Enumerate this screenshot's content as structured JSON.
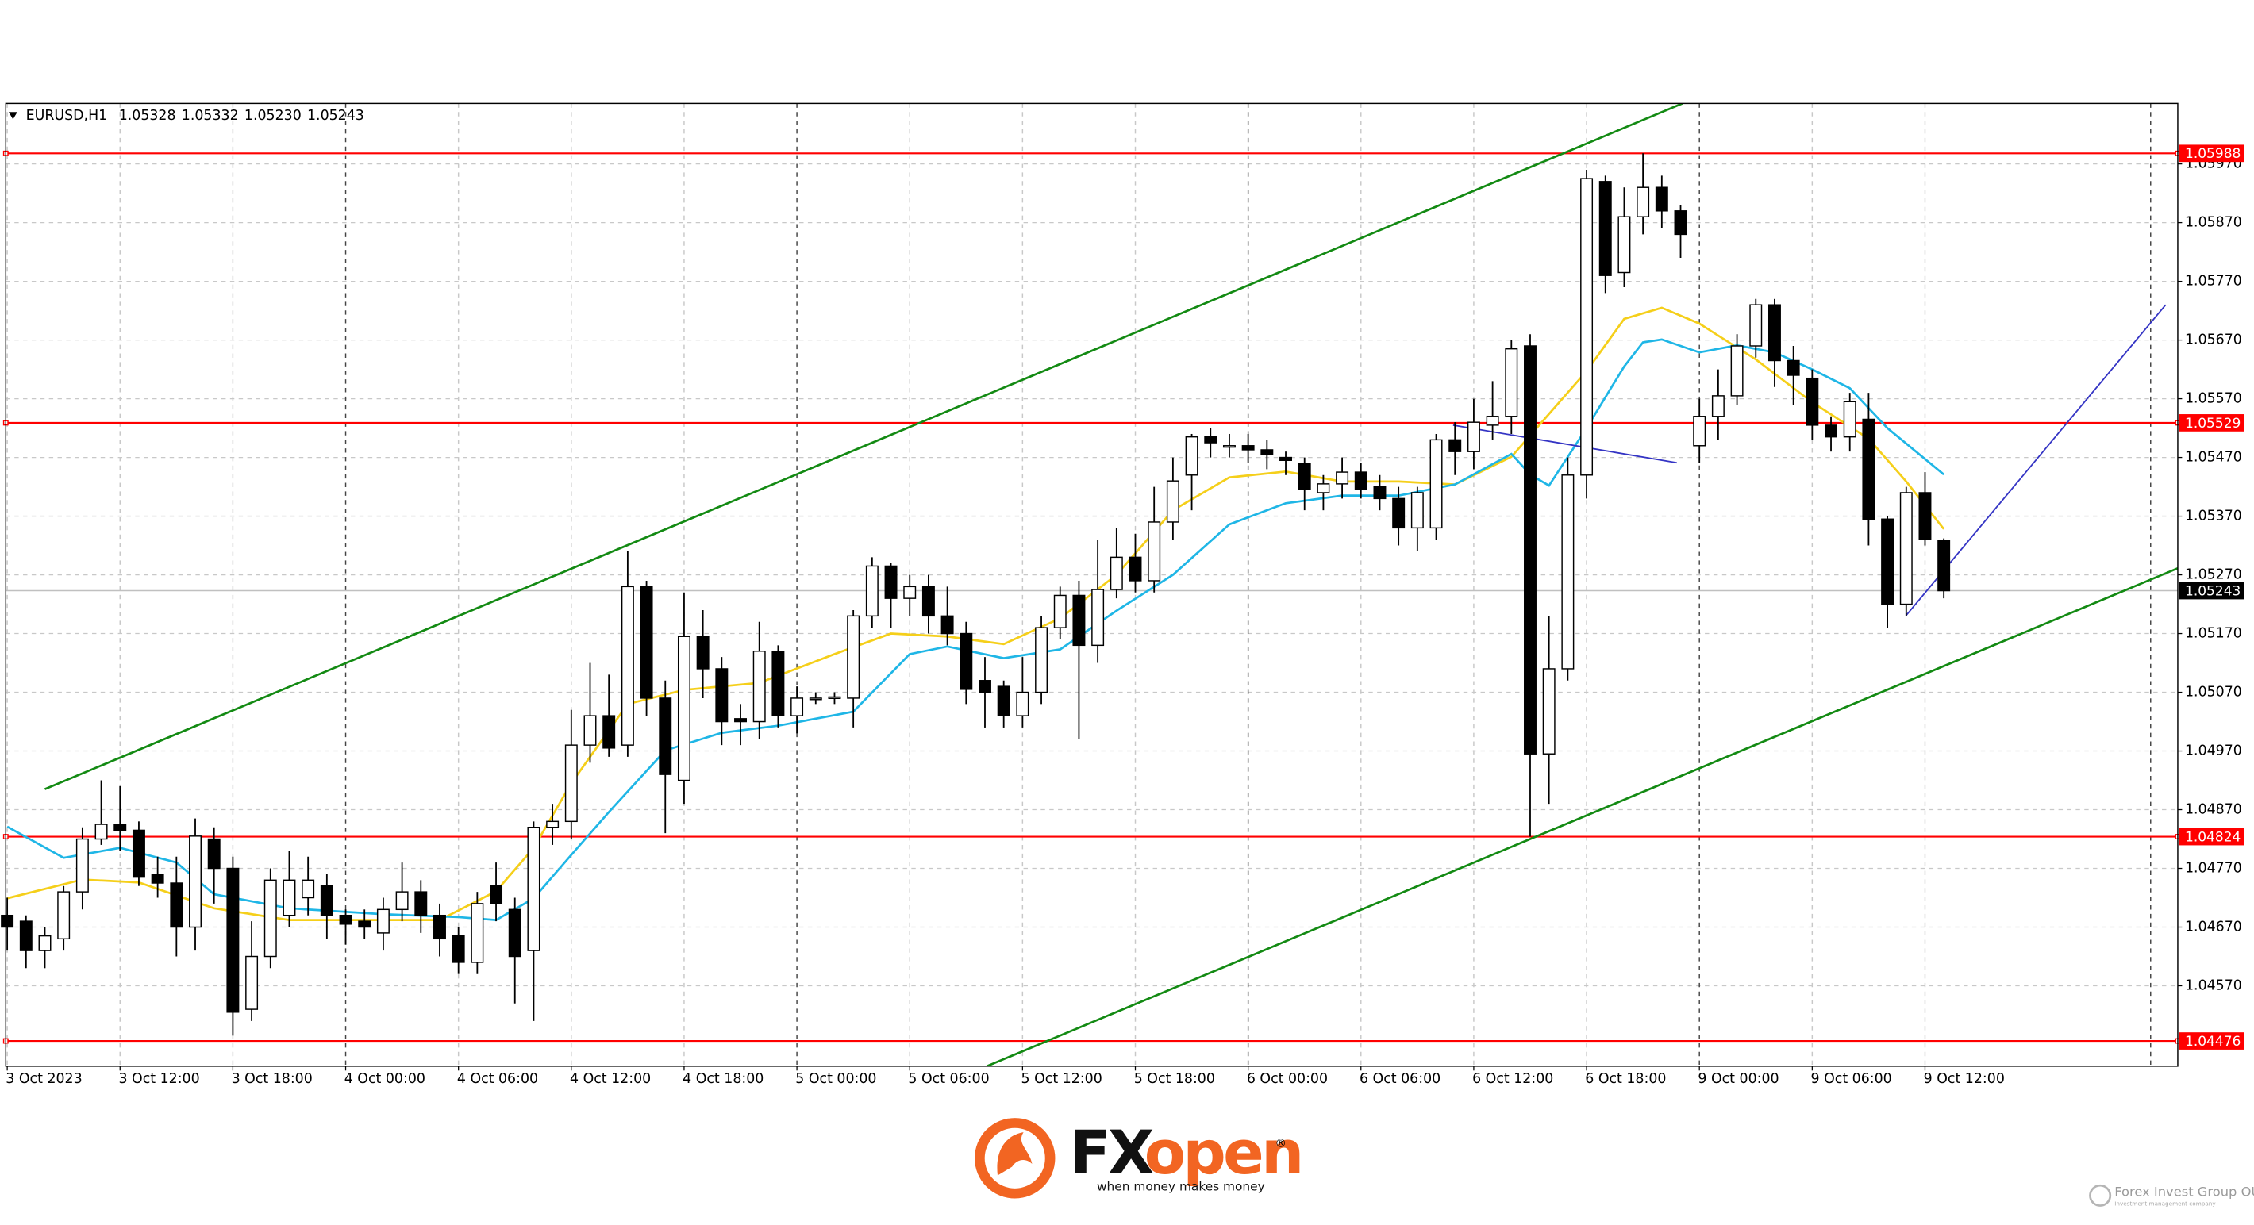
{
  "chart_data": {
    "type": "candlestick",
    "symbol": "EURUSD,H1",
    "quote": [
      1.05328,
      1.05332,
      {
        "value": 1.0523,
        "label": "1.05230"
      },
      1.05243
    ],
    "categories": [
      "3 Oct 2023",
      null,
      null,
      null,
      null,
      null,
      "3 Oct 12:00",
      null,
      null,
      null,
      null,
      null,
      "3 Oct 18:00",
      null,
      null,
      null,
      null,
      null,
      "4 Oct 00:00",
      null,
      null,
      null,
      null,
      null,
      "4 Oct 06:00",
      null,
      null,
      null,
      null,
      null,
      "4 Oct 12:00",
      null,
      null,
      null,
      null,
      null,
      "4 Oct 18:00",
      null,
      null,
      null,
      null,
      null,
      "5 Oct 00:00",
      null,
      null,
      null,
      null,
      null,
      "5 Oct 06:00",
      null,
      null,
      null,
      null,
      null,
      "5 Oct 12:00",
      null,
      null,
      null,
      null,
      null,
      "5 Oct 18:00",
      null,
      null,
      null,
      null,
      null,
      "6 Oct 00:00",
      null,
      null,
      null,
      null,
      null,
      "6 Oct 06:00",
      null,
      null,
      null,
      null,
      null,
      "6 Oct 12:00",
      null,
      null,
      null,
      null,
      null,
      "6 Oct 18:00",
      null,
      null,
      null,
      null,
      null,
      "9 Oct 00:00",
      null,
      null,
      null,
      null,
      null,
      "9 Oct 06:00",
      null,
      null,
      null,
      null,
      null,
      "9 Oct 12:00",
      null
    ],
    "open": [
      1.0469,
      1.0468,
      1.0463,
      1.0465,
      1.0473,
      1.0482,
      1.04845,
      1.04835,
      1.0476,
      1.04745,
      1.0467,
      1.0482,
      1.0477,
      1.0453,
      1.0462,
      1.0469,
      1.0472,
      1.0474,
      1.0469,
      1.0468,
      1.0466,
      1.047,
      1.0473,
      1.0469,
      1.04655,
      1.0461,
      1.0474,
      1.047,
      1.0463,
      1.0484,
      1.0485,
      1.0498,
      1.0503,
      1.0498,
      1.0525,
      1.0506,
      1.0492,
      1.05165,
      1.0511,
      1.05025,
      1.0502,
      1.0514,
      1.0503,
      1.0506,
      1.0506,
      1.0506,
      1.052,
      1.05285,
      1.0523,
      1.0525,
      1.052,
      1.0517,
      1.0509,
      1.0508,
      1.0503,
      1.0507,
      1.0518,
      1.05235,
      1.0515,
      1.05245,
      1.053,
      1.0526,
      1.0536,
      1.0544,
      1.05505,
      1.0549,
      1.0549,
      1.05483,
      1.0547,
      1.0546,
      1.0541,
      1.05425,
      1.05445,
      1.0542,
      1.054,
      1.0535,
      1.0535,
      1.055,
      1.0548,
      1.05525,
      1.0554,
      1.0566,
      1.04965,
      1.0511,
      1.0544,
      1.0594,
      1.05785,
      1.0588,
      1.0593,
      1.0589,
      1.0549,
      1.0554,
      1.05575,
      1.0566,
      1.0573,
      1.05635,
      1.05605,
      1.05525,
      1.05505,
      1.05535,
      1.05365,
      1.0522,
      1.0541,
      1.05328
    ],
    "high": [
      1.0472,
      1.0469,
      1.0467,
      1.0474,
      1.0484,
      1.0492,
      1.0491,
      1.0485,
      1.0479,
      1.0479,
      1.04855,
      1.0484,
      1.0479,
      1.0468,
      1.0477,
      1.048,
      1.0479,
      1.0476,
      1.047,
      1.047,
      1.0472,
      1.0478,
      1.0475,
      1.0471,
      1.0467,
      1.0473,
      1.0478,
      1.0472,
      1.0485,
      1.0488,
      1.0504,
      1.0512,
      1.051,
      1.0531,
      1.0526,
      1.0509,
      1.0524,
      1.0521,
      1.0513,
      1.0505,
      1.0519,
      1.0515,
      1.0508,
      1.0507,
      1.0507,
      1.0521,
      1.053,
      1.0529,
      1.0527,
      1.0527,
      1.0525,
      1.0519,
      1.0513,
      1.0509,
      1.0513,
      1.052,
      1.0525,
      1.0526,
      1.0533,
      1.0535,
      1.0534,
      1.0542,
      1.0547,
      1.0551,
      1.0552,
      1.0551,
      1.0551,
      1.055,
      1.0548,
      1.0547,
      1.0544,
      1.0547,
      1.0546,
      1.0544,
      1.0542,
      1.0542,
      1.0551,
      1.0553,
      1.0557,
      1.056,
      1.0567,
      1.0568,
      1.052,
      1.0547,
      1.0596,
      1.0595,
      1.0593,
      1.05988,
      1.0595,
      1.059,
      1.0557,
      1.0562,
      1.0568,
      1.0574,
      1.0574,
      1.0566,
      1.0562,
      1.0554,
      1.0558,
      1.0558,
      1.0537,
      1.0542,
      1.05445,
      1.05332
    ],
    "low": [
      1.0463,
      1.046,
      1.046,
      1.0463,
      1.047,
      1.0481,
      1.048,
      1.0474,
      1.0472,
      1.0462,
      1.0463,
      1.0471,
      1.04485,
      1.0451,
      1.046,
      1.0467,
      1.0469,
      1.0465,
      1.0464,
      1.0465,
      1.0463,
      1.0468,
      1.0466,
      1.0462,
      1.0459,
      1.0459,
      1.0468,
      1.0454,
      1.0451,
      1.0481,
      1.0482,
      1.0495,
      1.0496,
      1.0496,
      1.0503,
      1.0483,
      1.0488,
      1.0506,
      1.0498,
      1.0498,
      1.0499,
      1.0501,
      1.05,
      1.0505,
      1.0505,
      1.0501,
      1.0518,
      1.0518,
      1.052,
      1.0517,
      1.0515,
      1.0505,
      1.0501,
      1.0501,
      1.0501,
      1.0505,
      1.0516,
      1.0499,
      1.0512,
      1.0523,
      1.0524,
      1.0524,
      1.0533,
      1.0538,
      1.0547,
      1.0547,
      1.0546,
      1.0545,
      1.0544,
      1.0538,
      1.0538,
      1.054,
      1.054,
      1.0538,
      1.0532,
      1.0531,
      1.0533,
      1.0544,
      1.0545,
      1.055,
      1.0551,
      1.04824,
      1.0488,
      1.0509,
      1.054,
      1.0575,
      1.0576,
      1.0585,
      1.0586,
      1.0581,
      1.0546,
      1.055,
      1.0556,
      1.0564,
      1.0559,
      1.0556,
      1.055,
      1.0548,
      1.0548,
      1.0532,
      1.0518,
      1.052,
      1.0532,
      1.0523
    ],
    "close": [
      1.0467,
      1.0463,
      1.04655,
      1.0473,
      1.0482,
      1.04845,
      1.04835,
      1.04755,
      1.04745,
      1.0467,
      1.04825,
      1.0477,
      1.04525,
      1.0462,
      1.0475,
      1.0475,
      1.0475,
      1.0469,
      1.04675,
      1.0467,
      1.047,
      1.0473,
      1.0469,
      1.0465,
      1.0461,
      1.0471,
      1.0471,
      1.0462,
      1.0484,
      1.0485,
      1.0498,
      1.0503,
      1.04975,
      1.0525,
      1.0506,
      1.0493,
      1.05165,
      1.0511,
      1.0502,
      1.0502,
      1.0514,
      1.0503,
      1.0506,
      1.0506,
      1.05062,
      1.052,
      1.05285,
      1.0523,
      1.0525,
      1.052,
      1.0517,
      1.05075,
      1.0507,
      1.0503,
      1.0507,
      1.0518,
      1.05235,
      1.0515,
      1.05245,
      1.053,
      1.0526,
      1.0536,
      1.0543,
      1.05505,
      1.05495,
      1.0549,
      1.05483,
      1.05475,
      1.05465,
      1.05415,
      1.05425,
      1.05445,
      1.05415,
      1.054,
      1.0535,
      1.0541,
      1.055,
      1.0548,
      1.0553,
      1.0554,
      1.05655,
      1.04965,
      1.0511,
      1.0544,
      1.05945,
      1.0578,
      1.0588,
      1.0593,
      1.0589,
      1.0585,
      1.0554,
      1.05575,
      1.0566,
      1.0573,
      1.05635,
      1.0561,
      1.05525,
      1.05505,
      1.05565,
      1.05365,
      1.0522,
      1.0541,
      1.0533,
      1.05243
    ],
    "ylim": [
      1.04433,
      1.06073
    ],
    "yticks": [
      {
        "value": 1.0457,
        "label": "1.04570"
      },
      {
        "value": 1.0467,
        "label": "1.04670"
      },
      {
        "value": 1.0477,
        "label": "1.04770"
      },
      {
        "value": 1.0487,
        "label": "1.04870"
      },
      {
        "value": 1.0497,
        "label": "1.04970"
      },
      {
        "value": 1.0507,
        "label": "1.05070"
      },
      {
        "value": 1.0517,
        "label": "1.05170"
      },
      {
        "value": 1.0527,
        "label": "1.05270"
      },
      {
        "value": 1.0537,
        "label": "1.05370"
      },
      {
        "value": 1.0547,
        "label": "1.05470"
      },
      {
        "value": 1.0557,
        "label": "1.05570"
      },
      {
        "value": 1.0567,
        "label": "1.05670"
      },
      {
        "value": 1.0577,
        "label": "1.05770"
      },
      {
        "value": 1.0587,
        "label": "1.05870"
      },
      {
        "value": 1.0597,
        "label": "1.05970"
      }
    ],
    "grid": true,
    "colors": {
      "up": "#ffffff",
      "down": "#000000",
      "edge": "#000000"
    },
    "levels": [
      {
        "value": 1.05988,
        "color": "#ff0000"
      },
      {
        "value": 1.05529,
        "color": "#ff0000"
      },
      {
        "value": 1.04824,
        "color": "#ff0000"
      },
      {
        "value": 1.04476,
        "color": "#ff0000"
      }
    ],
    "overlays": [
      {
        "color": "#f5cf1a",
        "x": [
          0,
          4,
          7,
          11,
          15,
          20,
          23,
          26,
          28,
          30,
          33,
          36,
          40,
          44,
          47,
          50,
          53,
          56,
          59,
          62,
          65,
          68,
          71,
          74,
          77,
          80,
          82,
          84,
          86,
          88,
          90,
          93,
          96,
          99,
          101,
          103
        ],
        "values": [
          1.04719,
          1.04751,
          1.04746,
          1.04702,
          1.04682,
          1.04682,
          1.04682,
          1.04731,
          1.04805,
          1.04915,
          1.0505,
          1.05074,
          1.05086,
          1.05135,
          1.0517,
          1.05165,
          1.05152,
          1.05196,
          1.0527,
          1.0538,
          1.05436,
          1.05446,
          1.05429,
          1.05429,
          1.05424,
          1.05471,
          1.05544,
          1.05617,
          1.05706,
          1.05725,
          1.05698,
          1.05637,
          1.05564,
          1.05502,
          1.05429,
          1.05348
        ]
      },
      {
        "color": "#1fb6e6",
        "x": [
          0,
          3,
          6,
          9,
          11,
          15,
          20,
          24,
          26,
          28,
          30,
          32,
          35,
          38,
          41,
          45,
          48,
          50,
          53,
          56,
          59,
          62,
          65,
          68,
          71,
          74,
          77,
          80,
          81,
          82,
          84,
          86,
          87,
          88,
          90,
          92,
          94,
          96,
          98,
          100,
          103
        ],
        "values": [
          1.04841,
          1.04788,
          1.04805,
          1.0478,
          1.04726,
          1.04702,
          1.04692,
          1.04687,
          1.04682,
          1.04719,
          1.04793,
          1.04866,
          1.04971,
          1.05001,
          1.05013,
          1.05037,
          1.05135,
          1.05148,
          1.05128,
          1.05143,
          1.05209,
          1.0527,
          1.05356,
          1.05392,
          1.05405,
          1.05405,
          1.05424,
          1.05476,
          1.05441,
          1.05422,
          1.0552,
          1.05625,
          1.05666,
          1.05671,
          1.05649,
          1.05661,
          1.05649,
          1.0562,
          1.05588,
          1.0552,
          1.05441
        ]
      },
      {
        "color": "#138a13",
        "x": [
          2.0,
          89.1
        ],
        "values": [
          1.04905,
          1.06073
        ]
      },
      {
        "color": "#138a13",
        "x": [
          52.1,
          115.5
        ],
        "values": [
          1.04433,
          1.05282
        ]
      },
      {
        "color": "#3434c4",
        "x": [
          76.9,
          88.8
        ],
        "values": [
          1.05525,
          1.05461
        ]
      },
      {
        "color": "#3434c4",
        "x": [
          101,
          114.8
        ],
        "values": [
          1.05201,
          1.0573
        ]
      }
    ]
  },
  "logo": {
    "fx": "FX",
    "open": "open",
    "registered": "®",
    "tagline": "when money makes money"
  },
  "watermark": {
    "name": "Forex Invest Group OU",
    "subtitle": "Investment management company"
  }
}
